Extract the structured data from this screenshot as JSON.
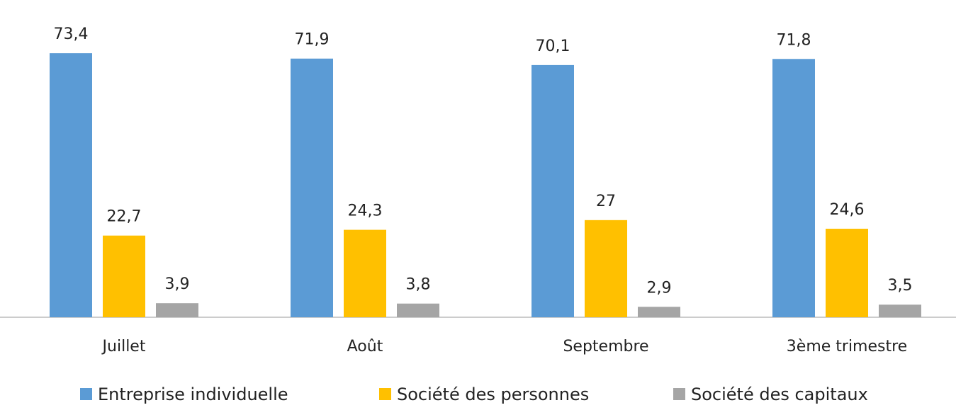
{
  "chart_data": {
    "type": "bar",
    "categories": [
      "Juillet",
      "Août",
      "Septembre",
      "3ème trimestre"
    ],
    "series": [
      {
        "name": "Entreprise individuelle",
        "color": "#5b9bd5",
        "values": [
          73.4,
          71.9,
          70.1,
          71.8
        ],
        "value_labels": [
          "73,4",
          "71,9",
          "70,1",
          "71,8"
        ]
      },
      {
        "name": "Société des personnes",
        "color": "#ffc000",
        "values": [
          22.7,
          24.3,
          27,
          24.6
        ],
        "value_labels": [
          "22,7",
          "24,3",
          "27",
          "24,6"
        ]
      },
      {
        "name": "Société des capitaux",
        "color": "#a5a5a5",
        "values": [
          3.9,
          3.8,
          2.9,
          3.5
        ],
        "value_labels": [
          "3,9",
          "3,8",
          "2,9",
          "3,5"
        ]
      }
    ],
    "legend": "bottom"
  }
}
